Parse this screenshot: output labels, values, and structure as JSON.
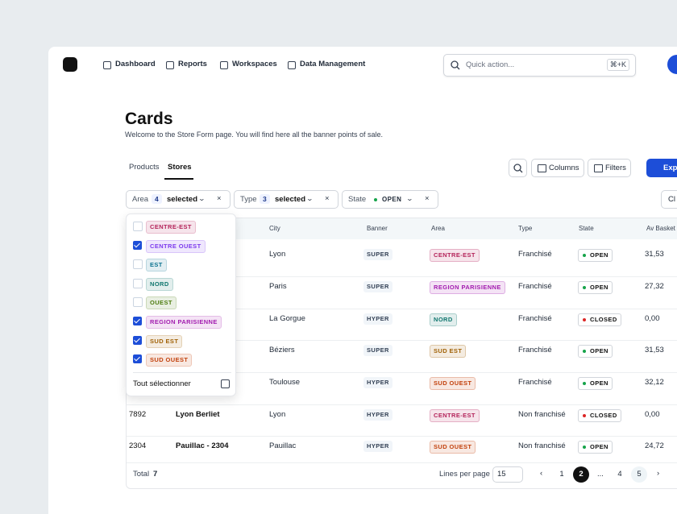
{
  "nav": {
    "items": [
      "Dashboard",
      "Reports",
      "Workspaces",
      "Data Management"
    ],
    "search_placeholder": "Quick action...",
    "shortcut": "⌘+K"
  },
  "header": {
    "title": "Cards",
    "subtitle": "Welcome to the Store Form page. You will find here all the banner points of sale."
  },
  "tabs": {
    "items": [
      "Products",
      "Stores"
    ],
    "active": 1
  },
  "toolbar": {
    "buttons": [
      "Columns",
      "Filters"
    ],
    "export": "Expo"
  },
  "filters": [
    {
      "label": "Area",
      "count": 4,
      "text": "selected"
    },
    {
      "label": "Type",
      "count": 3,
      "text": "selected"
    },
    {
      "label": "State",
      "value": "OPEN",
      "dot_color": "#16a34a"
    }
  ],
  "clear": "Cl",
  "table": {
    "headers": [
      "City",
      "Banner",
      "Area",
      "Type",
      "State",
      "Av Basket"
    ],
    "rows": [
      {
        "city": "Lyon",
        "banner": "SUPER",
        "area": "CENTRE-EST",
        "area_color": "#b4235a",
        "type": "Franchisé",
        "state": "OPEN",
        "state_color": "#16a34a",
        "basket": "31,53"
      },
      {
        "city": "Paris",
        "banner": "SUPER",
        "area": "REGION PARISIENNE",
        "area_color": "#a21caf",
        "type": "Franchisé",
        "state": "OPEN",
        "state_color": "#16a34a",
        "basket": "27,32"
      },
      {
        "city": "La Gorgue",
        "banner": "HYPER",
        "area": "NORD",
        "area_color": "#0f766e",
        "type": "Franchisé",
        "state": "CLOSED",
        "state_color": "#dc2626",
        "basket": "0,00"
      },
      {
        "city": "Béziers",
        "banner": "SUPER",
        "area": "SUD EST",
        "area_color": "#a16207",
        "type": "Franchisé",
        "state": "OPEN",
        "state_color": "#16a34a",
        "basket": "31,53"
      },
      {
        "city": "Toulouse",
        "banner": "HYPER",
        "area": "SUD OUEST",
        "area_color": "#c2410c",
        "type": "Franchisé",
        "state": "OPEN",
        "state_color": "#16a34a",
        "basket": "32,12"
      },
      {
        "id": 7892,
        "name": "Lyon Berliet",
        "city": "Lyon",
        "banner": "HYPER",
        "area": "CENTRE-EST",
        "area_color": "#b4235a",
        "type": "Non franchisé",
        "state": "CLOSED",
        "state_color": "#dc2626",
        "basket": "0,00"
      },
      {
        "id": 2304,
        "name": "Pauillac - 2304",
        "city": "Pauillac",
        "banner": "HYPER",
        "area": "SUD OUEST",
        "area_color": "#c2410c",
        "type": "Non franchisé",
        "state": "OPEN",
        "state_color": "#16a34a",
        "basket": "24,72"
      }
    ]
  },
  "dropdown": {
    "options": [
      {
        "label": "CENTRE-EST",
        "color": "#b4235a",
        "checked": false
      },
      {
        "label": "CENTRE OUEST",
        "color": "#7c3aed",
        "checked": true
      },
      {
        "label": "EST",
        "color": "#0e7490",
        "checked": false
      },
      {
        "label": "NORD",
        "color": "#0f766e",
        "checked": false
      },
      {
        "label": "OUEST",
        "color": "#4d7c0f",
        "checked": false
      },
      {
        "label": "REGION PARISIENNE",
        "color": "#a21caf",
        "checked": true
      },
      {
        "label": "SUD EST",
        "color": "#a16207",
        "checked": true
      },
      {
        "label": "SUD OUEST",
        "color": "#c2410c",
        "checked": true
      }
    ],
    "select_all": "Tout sélectionner"
  },
  "footer": {
    "total_label": "Total",
    "total": 7,
    "lines_label": "Lines per page",
    "lines": 15,
    "pages": [
      1,
      2,
      "...",
      4,
      5
    ],
    "current_page": 2,
    "hover_page": 5
  }
}
